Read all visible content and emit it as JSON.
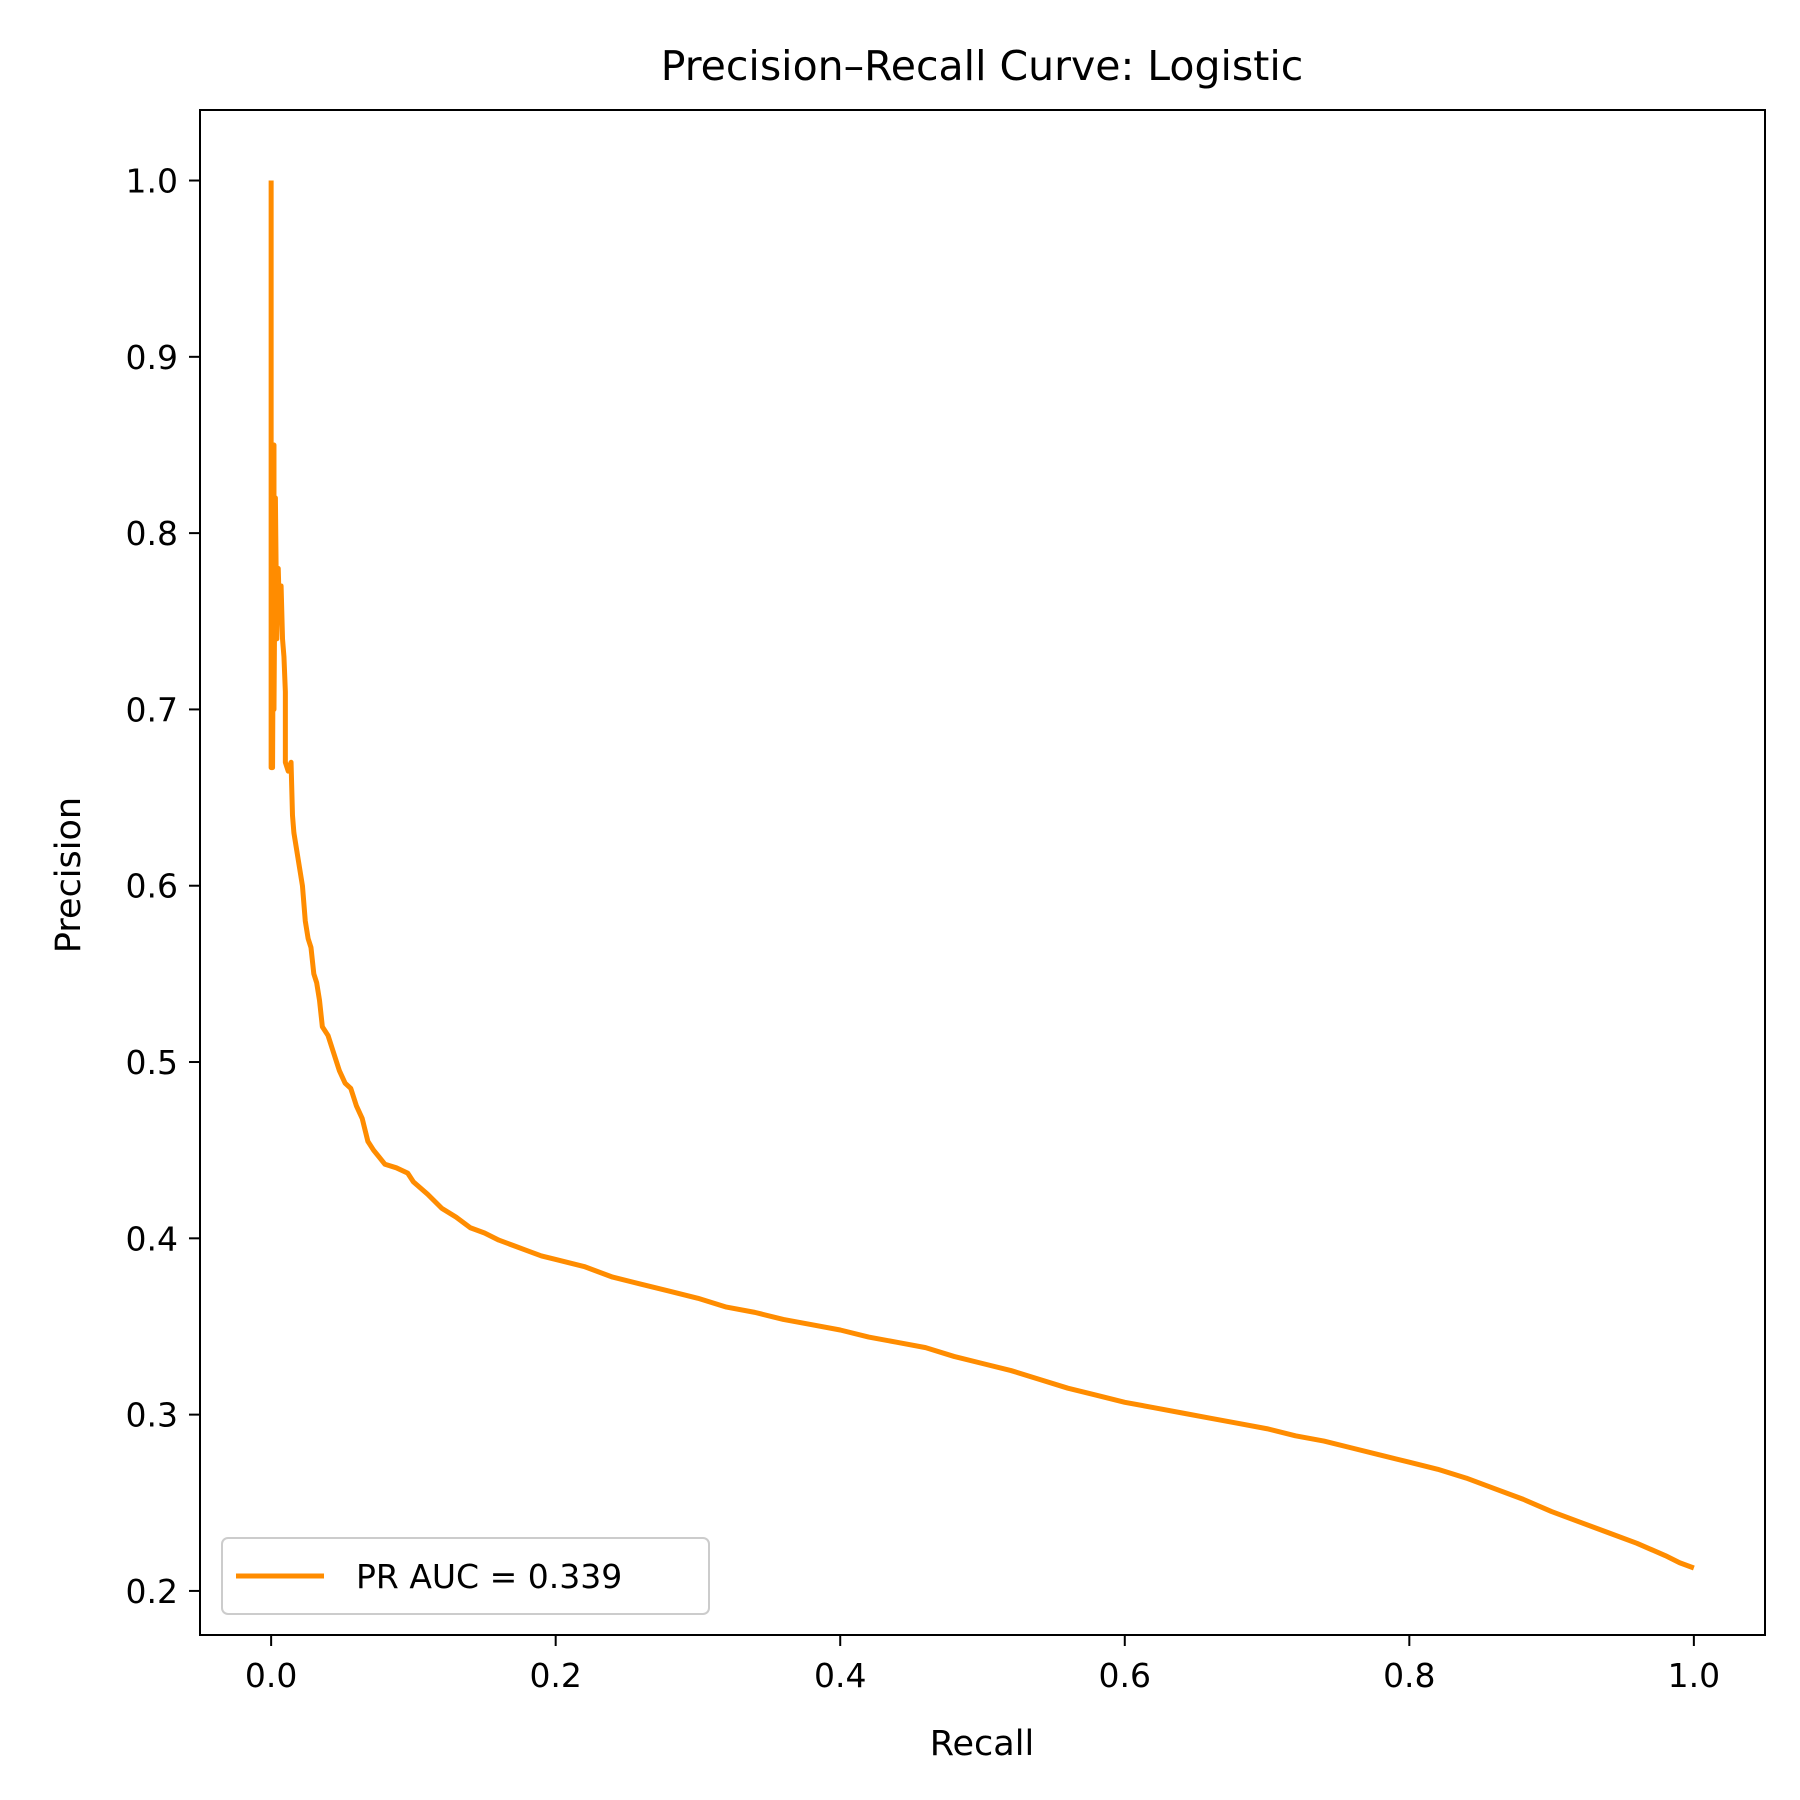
{
  "chart_data": {
    "type": "line",
    "title": "Precision–Recall Curve: Logistic",
    "xlabel": "Recall",
    "ylabel": "Precision",
    "xlim": [
      -0.05,
      1.05
    ],
    "ylim": [
      0.175,
      1.04
    ],
    "grid": false,
    "legend_placement": "lower-left",
    "x_ticks": [
      0.0,
      0.2,
      0.4,
      0.6,
      0.8,
      1.0
    ],
    "x_tick_labels": [
      "0.0",
      "0.2",
      "0.4",
      "0.6",
      "0.8",
      "1.0"
    ],
    "y_ticks": [
      0.2,
      0.3,
      0.4,
      0.5,
      0.6,
      0.7,
      0.8,
      0.9,
      1.0
    ],
    "y_tick_labels": [
      "0.2",
      "0.3",
      "0.4",
      "0.5",
      "0.6",
      "0.7",
      "0.8",
      "0.9",
      "1.0"
    ],
    "series": [
      {
        "name": "PR AUC = 0.339",
        "color": "#ff8c00",
        "points": [
          [
            0.0,
            1.0
          ],
          [
            0.0,
            0.667
          ],
          [
            0.001,
            0.667
          ],
          [
            0.002,
            0.85
          ],
          [
            0.002,
            0.7
          ],
          [
            0.003,
            0.82
          ],
          [
            0.004,
            0.74
          ],
          [
            0.005,
            0.78
          ],
          [
            0.006,
            0.75
          ],
          [
            0.007,
            0.77
          ],
          [
            0.008,
            0.74
          ],
          [
            0.009,
            0.73
          ],
          [
            0.01,
            0.71
          ],
          [
            0.01,
            0.67
          ],
          [
            0.012,
            0.665
          ],
          [
            0.014,
            0.67
          ],
          [
            0.015,
            0.64
          ],
          [
            0.016,
            0.63
          ],
          [
            0.018,
            0.62
          ],
          [
            0.02,
            0.61
          ],
          [
            0.022,
            0.6
          ],
          [
            0.024,
            0.58
          ],
          [
            0.026,
            0.57
          ],
          [
            0.028,
            0.565
          ],
          [
            0.03,
            0.55
          ],
          [
            0.032,
            0.545
          ],
          [
            0.034,
            0.535
          ],
          [
            0.036,
            0.52
          ],
          [
            0.04,
            0.515
          ],
          [
            0.044,
            0.505
          ],
          [
            0.048,
            0.495
          ],
          [
            0.052,
            0.488
          ],
          [
            0.056,
            0.485
          ],
          [
            0.06,
            0.475
          ],
          [
            0.064,
            0.468
          ],
          [
            0.068,
            0.455
          ],
          [
            0.072,
            0.45
          ],
          [
            0.076,
            0.446
          ],
          [
            0.08,
            0.442
          ],
          [
            0.088,
            0.44
          ],
          [
            0.096,
            0.437
          ],
          [
            0.1,
            0.432
          ],
          [
            0.11,
            0.425
          ],
          [
            0.12,
            0.417
          ],
          [
            0.13,
            0.412
          ],
          [
            0.14,
            0.406
          ],
          [
            0.15,
            0.403
          ],
          [
            0.16,
            0.399
          ],
          [
            0.17,
            0.396
          ],
          [
            0.18,
            0.393
          ],
          [
            0.19,
            0.39
          ],
          [
            0.2,
            0.388
          ],
          [
            0.22,
            0.384
          ],
          [
            0.24,
            0.378
          ],
          [
            0.26,
            0.374
          ],
          [
            0.28,
            0.37
          ],
          [
            0.3,
            0.366
          ],
          [
            0.32,
            0.361
          ],
          [
            0.34,
            0.358
          ],
          [
            0.36,
            0.354
          ],
          [
            0.38,
            0.351
          ],
          [
            0.4,
            0.348
          ],
          [
            0.42,
            0.344
          ],
          [
            0.44,
            0.341
          ],
          [
            0.46,
            0.338
          ],
          [
            0.48,
            0.333
          ],
          [
            0.5,
            0.329
          ],
          [
            0.52,
            0.325
          ],
          [
            0.54,
            0.32
          ],
          [
            0.56,
            0.315
          ],
          [
            0.58,
            0.311
          ],
          [
            0.6,
            0.307
          ],
          [
            0.62,
            0.304
          ],
          [
            0.64,
            0.301
          ],
          [
            0.66,
            0.298
          ],
          [
            0.68,
            0.295
          ],
          [
            0.7,
            0.292
          ],
          [
            0.72,
            0.288
          ],
          [
            0.74,
            0.285
          ],
          [
            0.76,
            0.281
          ],
          [
            0.78,
            0.277
          ],
          [
            0.8,
            0.273
          ],
          [
            0.82,
            0.269
          ],
          [
            0.84,
            0.264
          ],
          [
            0.86,
            0.258
          ],
          [
            0.88,
            0.252
          ],
          [
            0.9,
            0.245
          ],
          [
            0.92,
            0.239
          ],
          [
            0.94,
            0.233
          ],
          [
            0.96,
            0.227
          ],
          [
            0.98,
            0.22
          ],
          [
            0.99,
            0.216
          ],
          [
            1.0,
            0.213
          ]
        ]
      }
    ]
  }
}
